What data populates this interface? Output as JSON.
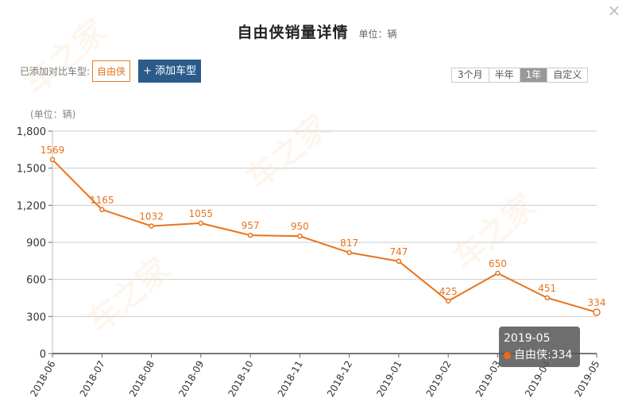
{
  "header": {
    "title": "自由侠销量详情",
    "unit": "单位：辆",
    "close_icon": "×"
  },
  "compare": {
    "label": "已添加对比车型:",
    "tags": [
      "自由侠"
    ],
    "add_button": "+ 添加车型"
  },
  "range": {
    "options": [
      "3个月",
      "半年",
      "1年",
      "自定义"
    ],
    "selected": "1年"
  },
  "colors": {
    "series": "#e8731c",
    "add_button": "#2b5b8a",
    "tooltip_bg": "#5a5a5a"
  },
  "tooltip": {
    "date": "2019-05",
    "series_name": "自由侠",
    "separator": " : ",
    "value": "334"
  },
  "chart_data": {
    "type": "line",
    "title": "自由侠销量详情",
    "subtitle": "单位：辆",
    "xlabel": "",
    "ylabel": "(单位：辆)",
    "categories": [
      "2018-06",
      "2018-07",
      "2018-08",
      "2018-09",
      "2018-10",
      "2018-11",
      "2018-12",
      "2019-01",
      "2019-02",
      "2019-03",
      "2019-04",
      "2019-05"
    ],
    "series": [
      {
        "name": "自由侠",
        "values": [
          1569,
          1165,
          1032,
          1055,
          957,
          950,
          817,
          747,
          425,
          650,
          451,
          334
        ]
      }
    ],
    "ylim": [
      0,
      1800
    ],
    "yticks": [
      0,
      300,
      600,
      900,
      1200,
      1500,
      1800
    ],
    "ytick_labels": [
      "0",
      "300",
      "600",
      "900",
      "1,200",
      "1,500",
      "1,800"
    ],
    "grid": true,
    "data_labels": true,
    "legend": "none"
  }
}
